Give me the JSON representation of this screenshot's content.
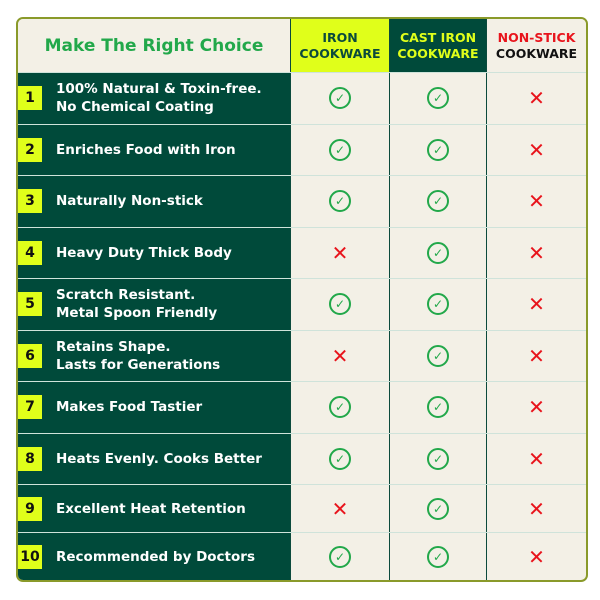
{
  "title": "Make The Right Choice",
  "columns": [
    {
      "line1": "IRON",
      "line2": "COOKWARE"
    },
    {
      "line1": "CAST IRON",
      "line2": "COOKWARE"
    },
    {
      "line1": "NON-STICK",
      "line2": "COOKWARE"
    }
  ],
  "rows": [
    {
      "num": "1",
      "label": "100% Natural & Toxin-free.\nNo Chemical Coating",
      "values": [
        true,
        true,
        false
      ]
    },
    {
      "num": "2",
      "label": "Enriches Food with Iron",
      "values": [
        true,
        true,
        false
      ]
    },
    {
      "num": "3",
      "label": "Naturally Non-stick",
      "values": [
        true,
        true,
        false
      ]
    },
    {
      "num": "4",
      "label": "Heavy Duty Thick Body",
      "values": [
        false,
        true,
        false
      ]
    },
    {
      "num": "5",
      "label": "Scratch Resistant.\nMetal Spoon Friendly",
      "values": [
        true,
        true,
        false
      ]
    },
    {
      "num": "6",
      "label": "Retains Shape.\nLasts for Generations",
      "values": [
        false,
        true,
        false
      ]
    },
    {
      "num": "7",
      "label": "Makes Food Tastier",
      "values": [
        true,
        true,
        false
      ]
    },
    {
      "num": "8",
      "label": "Heats Evenly. Cooks Better",
      "values": [
        true,
        true,
        false
      ]
    },
    {
      "num": "9",
      "label": "Excellent Heat Retention",
      "values": [
        false,
        true,
        false
      ]
    },
    {
      "num": "10",
      "label": "Recommended by Doctors",
      "values": [
        true,
        true,
        false
      ]
    }
  ],
  "icons": {
    "yes": "check-circle-icon",
    "no": "cross-icon"
  },
  "colors": {
    "dark_green": "#004a3a",
    "lime": "#e0ff1a",
    "cream": "#f3f0e6",
    "check": "#22a84a",
    "cross": "#e8141c"
  }
}
